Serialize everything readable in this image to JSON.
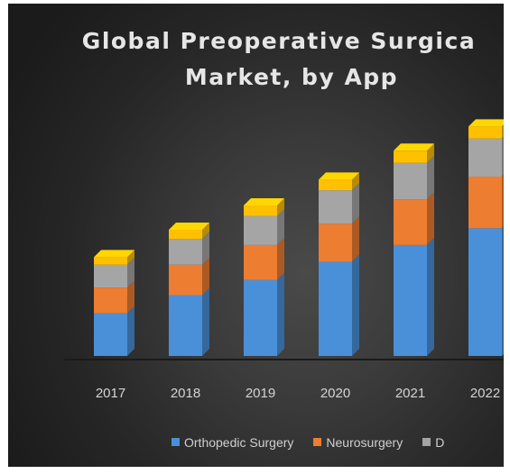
{
  "chart_data": {
    "type": "bar",
    "stacked": true,
    "title": "Global Preoperative Surgica",
    "title_line2": "Market, by App",
    "categories": [
      "2017",
      "2018",
      "2019",
      "2020",
      "2021",
      "2022"
    ],
    "series": [
      {
        "name": "Orthopedic Surgery",
        "color": "#4a90d9",
        "values": [
          28,
          40,
          50,
          62,
          73,
          84
        ]
      },
      {
        "name": "Neurosurgery",
        "color": "#ed7d31",
        "values": [
          17,
          20,
          23,
          25,
          30,
          34
        ]
      },
      {
        "name": "D",
        "color": "#a5a5a5",
        "values": [
          15,
          17,
          19,
          22,
          24,
          25
        ]
      },
      {
        "name": "",
        "color": "#ffc000",
        "values": [
          5,
          6,
          7,
          7,
          8,
          8
        ]
      }
    ],
    "xlabel": "",
    "ylabel": "",
    "ylim": [
      0,
      150
    ],
    "grid": false,
    "legend_position": "bottom"
  }
}
